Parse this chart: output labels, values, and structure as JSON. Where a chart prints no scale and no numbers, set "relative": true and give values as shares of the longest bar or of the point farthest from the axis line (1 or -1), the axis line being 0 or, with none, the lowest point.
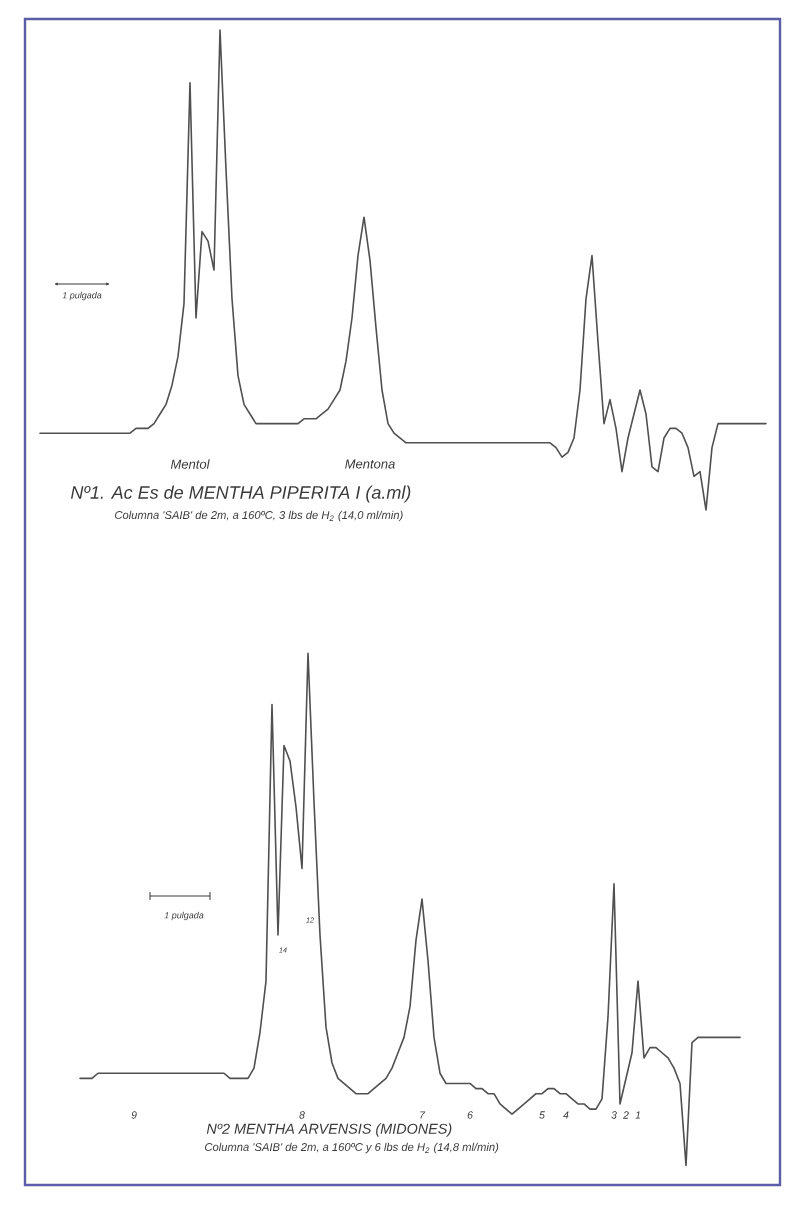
{
  "chart_data": [
    {
      "type": "line",
      "title": "Nº1. Ac Es de MENTHA PIPERITA I (a.ml)",
      "subtitle": "Columna 'SAIB' de 2m, a 160ºC, 3 lbs de H$_{2}$ (14,0 ml/min)",
      "annotations": [
        "1 pulgada"
      ],
      "relative": true,
      "color": "#505050",
      "categories": [
        null,
        null,
        null,
        null,
        null,
        null,
        null,
        null,
        null,
        null,
        null,
        null,
        null,
        null,
        null,
        null,
        null,
        null,
        null,
        null,
        null,
        null,
        null,
        null,
        null,
        "Mentol",
        null,
        null,
        null,
        null,
        null,
        null,
        null,
        null,
        null,
        null,
        null,
        null,
        null,
        null,
        null,
        null,
        null,
        null,
        null,
        null,
        null,
        null,
        null,
        null,
        null,
        null,
        null,
        null,
        null,
        "Mentona",
        null,
        null,
        null,
        null,
        null,
        null,
        null,
        null,
        null,
        null,
        null,
        null,
        null,
        null,
        null,
        null,
        null,
        null,
        null,
        null,
        null,
        null,
        null,
        null,
        null,
        null,
        null,
        null,
        null,
        null,
        null,
        null,
        null,
        null,
        null,
        null,
        null,
        null,
        null,
        null,
        null,
        null,
        null,
        null,
        null,
        null,
        null,
        null,
        null,
        null,
        null,
        null,
        null,
        null,
        null,
        null,
        null,
        null,
        null,
        null,
        null,
        null,
        null,
        null,
        null,
        null
      ],
      "values": [
        0.16,
        0.16,
        0.16,
        0.16,
        0.16,
        0.16,
        0.16,
        0.16,
        0.16,
        0.16,
        0.16,
        0.16,
        0.16,
        0.16,
        0.16,
        0.16,
        0.17,
        0.17,
        0.17,
        0.18,
        0.2,
        0.22,
        0.26,
        0.32,
        0.43,
        0.89,
        0.4,
        0.58,
        0.56,
        0.5,
        1,
        0.71,
        0.44,
        0.28,
        0.22,
        0.2,
        0.18,
        0.18,
        0.18,
        0.18,
        0.18,
        0.18,
        0.18,
        0.18,
        0.19,
        0.19,
        0.19,
        0.2,
        0.21,
        0.23,
        0.25,
        0.31,
        0.4,
        0.53,
        0.61,
        0.52,
        0.38,
        0.25,
        0.18,
        0.16,
        0.15,
        0.14,
        0.14,
        0.14,
        0.14,
        0.14,
        0.14,
        0.14,
        0.14,
        0.14,
        0.14,
        0.14,
        0.14,
        0.14,
        0.14,
        0.14,
        0.14,
        0.14,
        0.14,
        0.14,
        0.14,
        0.14,
        0.14,
        0.14,
        0.14,
        0.14,
        0.13,
        0.11,
        0.12,
        0.15,
        0.25,
        0.44,
        0.53,
        0.35,
        0.18,
        0.23,
        0.17,
        0.08,
        0.15,
        0.2,
        0.25,
        0.2,
        0.09,
        0.08,
        0.15,
        0.17,
        0.17,
        0.16,
        0.13,
        0.07,
        0.08,
        0,
        0.13,
        0.18,
        0.18,
        0.18,
        0.18,
        0.18,
        0.18,
        0.18,
        0.18,
        0.18
      ]
    },
    {
      "type": "line",
      "title": "Nº2 MENTHA ARVENSIS (MIDONES)",
      "subtitle": "Columna 'SAIB' de 2m, a 160ºC y 6 lbs de H$_{2}$ (14,8 ml/min)",
      "annotations": [
        "1 pulgada",
        "14",
        "12"
      ],
      "relative": true,
      "color": "#505050",
      "categories": [
        null,
        null,
        null,
        null,
        null,
        null,
        null,
        null,
        null,
        "9",
        null,
        null,
        null,
        null,
        null,
        null,
        null,
        null,
        null,
        null,
        null,
        null,
        null,
        null,
        null,
        null,
        null,
        null,
        null,
        null,
        null,
        null,
        null,
        null,
        null,
        null,
        null,
        "8",
        null,
        null,
        null,
        null,
        null,
        null,
        null,
        null,
        null,
        null,
        null,
        null,
        null,
        null,
        null,
        null,
        null,
        null,
        null,
        "7",
        null,
        null,
        null,
        null,
        null,
        null,
        null,
        "6",
        null,
        null,
        null,
        null,
        null,
        null,
        null,
        null,
        null,
        null,
        null,
        "5",
        null,
        null,
        null,
        "4",
        null,
        null,
        null,
        null,
        null,
        null,
        null,
        "3",
        null,
        "2",
        null,
        "1",
        null,
        null,
        null,
        null,
        null,
        null,
        null,
        null,
        null,
        null,
        null,
        null,
        null,
        null,
        null,
        null,
        null
      ],
      "values": [
        0.17,
        0.17,
        0.17,
        0.18,
        0.18,
        0.18,
        0.18,
        0.18,
        0.18,
        0.18,
        0.18,
        0.18,
        0.18,
        0.18,
        0.18,
        0.18,
        0.18,
        0.18,
        0.18,
        0.18,
        0.18,
        0.18,
        0.18,
        0.18,
        0.18,
        0.17,
        0.17,
        0.17,
        0.17,
        0.19,
        0.26,
        0.36,
        0.9,
        0.45,
        0.82,
        0.79,
        0.7,
        0.58,
        1,
        0.71,
        0.45,
        0.27,
        0.2,
        0.17,
        0.16,
        0.15,
        0.14,
        0.14,
        0.14,
        0.15,
        0.16,
        0.17,
        0.19,
        0.22,
        0.25,
        0.31,
        0.44,
        0.52,
        0.4,
        0.25,
        0.18,
        0.16,
        0.16,
        0.16,
        0.16,
        0.16,
        0.15,
        0.15,
        0.14,
        0.14,
        0.12,
        0.11,
        0.1,
        0.11,
        0.12,
        0.13,
        0.14,
        0.14,
        0.15,
        0.15,
        0.14,
        0.14,
        0.13,
        0.12,
        0.12,
        0.11,
        0.11,
        0.13,
        0.29,
        0.55,
        0.12,
        0.17,
        0.22,
        0.36,
        0.21,
        0.23,
        0.23,
        0.22,
        0.21,
        0.19,
        0.16,
        0,
        0.24,
        0.25,
        0.25,
        0.25,
        0.25,
        0.25,
        0.25,
        0.25,
        0.25
      ]
    }
  ]
}
